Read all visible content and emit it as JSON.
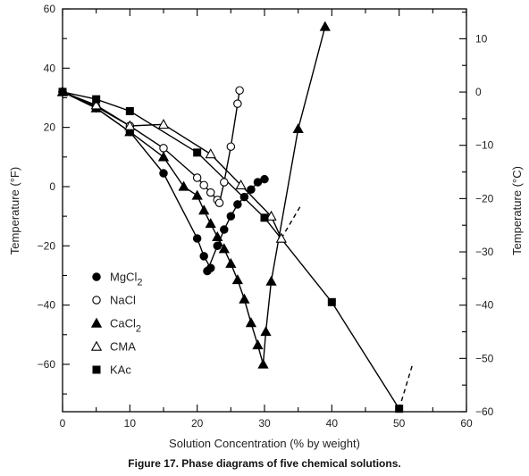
{
  "caption": "Figure 17. Phase diagrams of five chemical solutions.",
  "chart_data": {
    "type": "scatter",
    "title": "",
    "xlabel": "Solution Concentration (% by weight)",
    "ylabel_left": "Temperature (°F)",
    "ylabel_right": "Temperature (°C)",
    "xlim": [
      0,
      60
    ],
    "ylim_left": [
      -76,
      60
    ],
    "ylim_right": [
      -60.0,
      15.6
    ],
    "x_ticks": [
      0,
      10,
      20,
      30,
      40,
      50,
      60
    ],
    "y_ticks_left": [
      -60,
      -40,
      -20,
      0,
      20,
      40,
      60
    ],
    "y_ticks_left_labels": [
      "−60",
      "−40",
      "−20",
      "0",
      "20",
      "40",
      "60"
    ],
    "y_ticks_right": [
      -60,
      -50,
      -40,
      -30,
      -20,
      -10,
      0,
      10
    ],
    "y_ticks_right_labels": [
      "−60",
      "−50",
      "−40",
      "−30",
      "−20",
      "−10",
      "0",
      "10"
    ],
    "grid": false,
    "legend_position": "left-middle",
    "series": [
      {
        "name": "MgCl2",
        "label_main": "MgCl",
        "label_sub": "2",
        "marker": "filled-circle",
        "curves": [
          [
            [
              0,
              32
            ],
            [
              5,
              26.5
            ],
            [
              10,
              18.5
            ],
            [
              15,
              4.5
            ],
            [
              20,
              -17.5
            ],
            [
              21,
              -23.5
            ],
            [
              22,
              -27.5
            ]
          ],
          [
            [
              21.5,
              -28.5
            ],
            [
              23,
              -20
            ],
            [
              24,
              -14.5
            ],
            [
              25,
              -10
            ],
            [
              26,
              -6
            ],
            [
              27,
              -3.5
            ],
            [
              28,
              -1
            ],
            [
              29,
              1.5
            ],
            [
              30,
              2.5
            ]
          ]
        ],
        "points": [
          [
            0,
            32
          ],
          [
            5,
            26.5
          ],
          [
            10,
            18.5
          ],
          [
            15,
            4.5
          ],
          [
            20,
            -17.5
          ],
          [
            21,
            -23.5
          ],
          [
            22,
            -27.5
          ],
          [
            21.5,
            -28.5
          ],
          [
            23,
            -20
          ],
          [
            24,
            -14.5
          ],
          [
            25,
            -10
          ],
          [
            26,
            -6
          ],
          [
            27,
            -3.5
          ],
          [
            28,
            -1
          ],
          [
            29,
            1.5
          ],
          [
            30,
            2.5
          ]
        ]
      },
      {
        "name": "NaCl",
        "label_main": "NaCl",
        "label_sub": "",
        "marker": "open-circle",
        "curves": [
          [
            [
              0,
              32
            ],
            [
              5,
              27
            ],
            [
              10,
              20.5
            ],
            [
              15,
              13
            ],
            [
              20,
              3
            ],
            [
              21,
              0.5
            ],
            [
              22,
              -2
            ],
            [
              23,
              -4.5
            ],
            [
              23.3,
              -5.5
            ],
            [
              24,
              1.5
            ],
            [
              25,
              13.5
            ],
            [
              26,
              28
            ],
            [
              26.3,
              32.5
            ]
          ]
        ],
        "points": [
          [
            0,
            32
          ],
          [
            5,
            27
          ],
          [
            10,
            20.5
          ],
          [
            15,
            13
          ],
          [
            20,
            3
          ],
          [
            21,
            0.5
          ],
          [
            22,
            -2
          ],
          [
            23,
            -4.5
          ],
          [
            23.3,
            -5.5
          ],
          [
            24,
            1.5
          ],
          [
            25,
            13.5
          ],
          [
            26,
            28
          ],
          [
            26.3,
            32.5
          ]
        ]
      },
      {
        "name": "CaCl2",
        "label_main": "CaCl",
        "label_sub": "2",
        "marker": "filled-triangle",
        "curves": [
          [
            [
              0,
              32
            ],
            [
              5,
              26.5
            ],
            [
              10,
              18.5
            ],
            [
              15,
              10
            ],
            [
              18,
              0
            ],
            [
              20,
              -3
            ],
            [
              21,
              -8
            ],
            [
              22,
              -12.5
            ],
            [
              23,
              -17
            ],
            [
              24,
              -21
            ],
            [
              25,
              -26
            ],
            [
              26,
              -31.5
            ],
            [
              27,
              -38
            ],
            [
              28,
              -46
            ],
            [
              29,
              -53.5
            ],
            [
              29.8,
              -60
            ],
            [
              30.2,
              -49
            ],
            [
              31,
              -32
            ],
            [
              35,
              19.5
            ],
            [
              39,
              54
            ]
          ]
        ],
        "points": [
          [
            0,
            32
          ],
          [
            5,
            26.5
          ],
          [
            10,
            18.5
          ],
          [
            15,
            10
          ],
          [
            18,
            0
          ],
          [
            20,
            -3
          ],
          [
            21,
            -8
          ],
          [
            22,
            -12.5
          ],
          [
            23,
            -17
          ],
          [
            24,
            -21
          ],
          [
            25,
            -26
          ],
          [
            26,
            -31.5
          ],
          [
            27,
            -38
          ],
          [
            28,
            -46
          ],
          [
            29,
            -53.5
          ],
          [
            29.8,
            -60
          ],
          [
            30.2,
            -49
          ],
          [
            31,
            -32
          ],
          [
            35,
            19.5
          ],
          [
            39,
            54
          ]
        ]
      },
      {
        "name": "CMA",
        "label_main": "CMA",
        "label_sub": "",
        "marker": "open-triangle",
        "curves": [
          [
            [
              0,
              32
            ],
            [
              5,
              27.5
            ],
            [
              10,
              20.5
            ],
            [
              15,
              21
            ],
            [
              22,
              11
            ],
            [
              26.5,
              0.5
            ],
            [
              31,
              -10
            ],
            [
              32.5,
              -17.5
            ]
          ]
        ],
        "extensions": [
          [
            [
              32.5,
              -17.5
            ],
            [
              35.5,
              -6
            ]
          ]
        ],
        "points": [
          [
            0,
            32
          ],
          [
            5,
            27.5
          ],
          [
            10,
            20.5
          ],
          [
            15,
            21
          ],
          [
            22,
            11
          ],
          [
            26.5,
            0.5
          ],
          [
            31,
            -10
          ],
          [
            32.5,
            -17.5
          ]
        ]
      },
      {
        "name": "KAc",
        "label_main": "KAc",
        "label_sub": "",
        "marker": "filled-square",
        "curves": [
          [
            [
              0,
              32
            ],
            [
              5,
              29.5
            ],
            [
              10,
              25.5
            ],
            [
              20,
              11.5
            ],
            [
              30,
              -10.5
            ],
            [
              40,
              -39
            ],
            [
              50,
              -75
            ]
          ]
        ],
        "extensions": [
          [
            [
              50,
              -75
            ],
            [
              52,
              -60
            ]
          ]
        ],
        "points": [
          [
            0,
            32
          ],
          [
            5,
            29.5
          ],
          [
            10,
            25.5
          ],
          [
            20,
            11.5
          ],
          [
            30,
            -10.5
          ],
          [
            40,
            -39
          ],
          [
            50,
            -75
          ]
        ]
      }
    ]
  }
}
